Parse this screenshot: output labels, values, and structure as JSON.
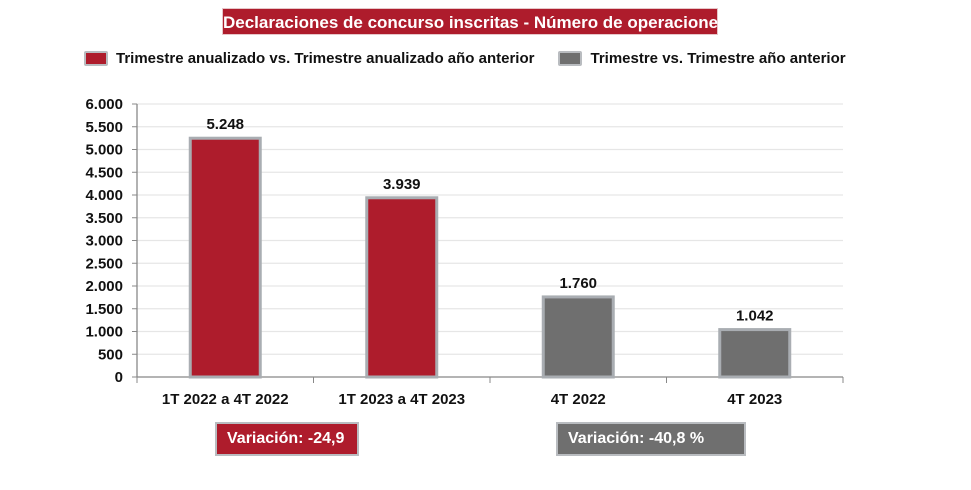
{
  "title": "Declaraciones de concurso inscritas - Número de operaciones",
  "legend": [
    {
      "label": "Trimestre anualizado vs. Trimestre anualizado año anterior",
      "color": "#ae1c2c"
    },
    {
      "label": "Trimestre vs. Trimestre año anterior",
      "color": "#6f6f6f"
    }
  ],
  "variations": [
    {
      "label": "Variación:  -24,9",
      "color": "#ae1c2c"
    },
    {
      "label": "Variación: -40,8 %",
      "color": "#6f6f6f"
    }
  ],
  "chart_data": {
    "type": "bar",
    "title": "Declaraciones de concurso inscritas - Número de operaciones",
    "xlabel": "",
    "ylabel": "",
    "categories": [
      "1T 2022 a 4T 2022",
      "1T 2023 a 4T 2023",
      "4T 2022",
      "4T 2023"
    ],
    "values": [
      5248,
      3939,
      1760,
      1042
    ],
    "value_labels": [
      "5.248",
      "3.939",
      "1.760",
      "1.042"
    ],
    "series_index": [
      0,
      0,
      1,
      1
    ],
    "series": [
      {
        "name": "Trimestre anualizado vs. Trimestre anualizado año anterior",
        "color": "#ae1c2c"
      },
      {
        "name": "Trimestre vs. Trimestre año anterior",
        "color": "#6f6f6f"
      }
    ],
    "ylim": [
      0,
      6000
    ],
    "yticks": [
      0,
      500,
      1000,
      1500,
      2000,
      2500,
      3000,
      3500,
      4000,
      4500,
      5000,
      5500,
      6000
    ],
    "ytick_labels": [
      "0",
      "500",
      "1.000",
      "1.500",
      "2.000",
      "2.500",
      "3.000",
      "3.500",
      "4.000",
      "4.500",
      "5.000",
      "5.500",
      "6.000"
    ],
    "grid": true,
    "legend_position": "top"
  }
}
